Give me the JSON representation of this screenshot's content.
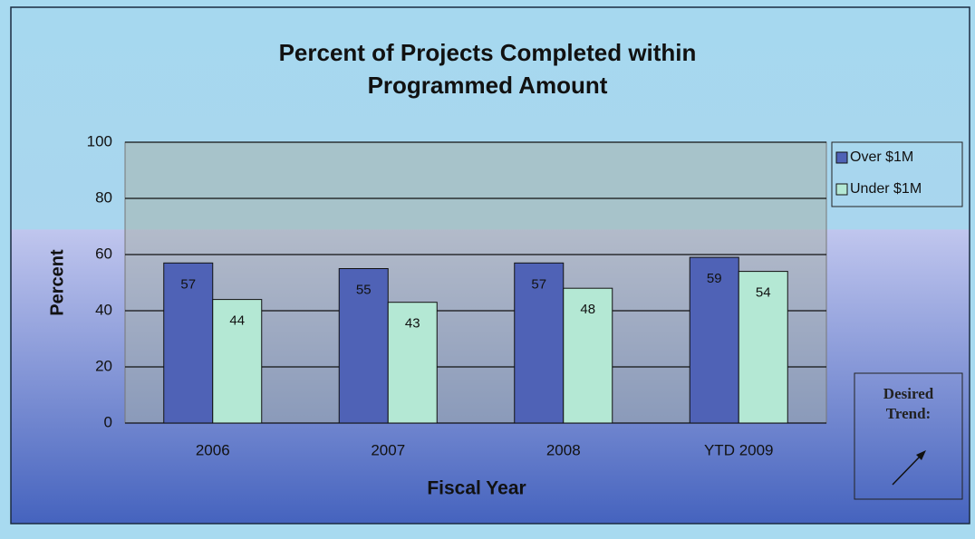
{
  "chart_data": {
    "type": "bar",
    "title": "Percent of Projects Completed within Programmed Amount",
    "categories": [
      "2006",
      "2007",
      "2008",
      "YTD 2009"
    ],
    "series": [
      {
        "name": "Over $1M",
        "color": "#4f62b6",
        "values": [
          57,
          55,
          57,
          59
        ]
      },
      {
        "name": "Under $1M",
        "color": "#b4e8d4",
        "values": [
          44,
          43,
          48,
          54
        ]
      }
    ],
    "ylim": [
      0,
      100
    ],
    "yticks": [
      0,
      20,
      40,
      60,
      80,
      100
    ],
    "grid": true,
    "y_label": "Percent",
    "x_label": "Fiscal Year",
    "legend": "right",
    "annotation": "Desired Trend:"
  }
}
